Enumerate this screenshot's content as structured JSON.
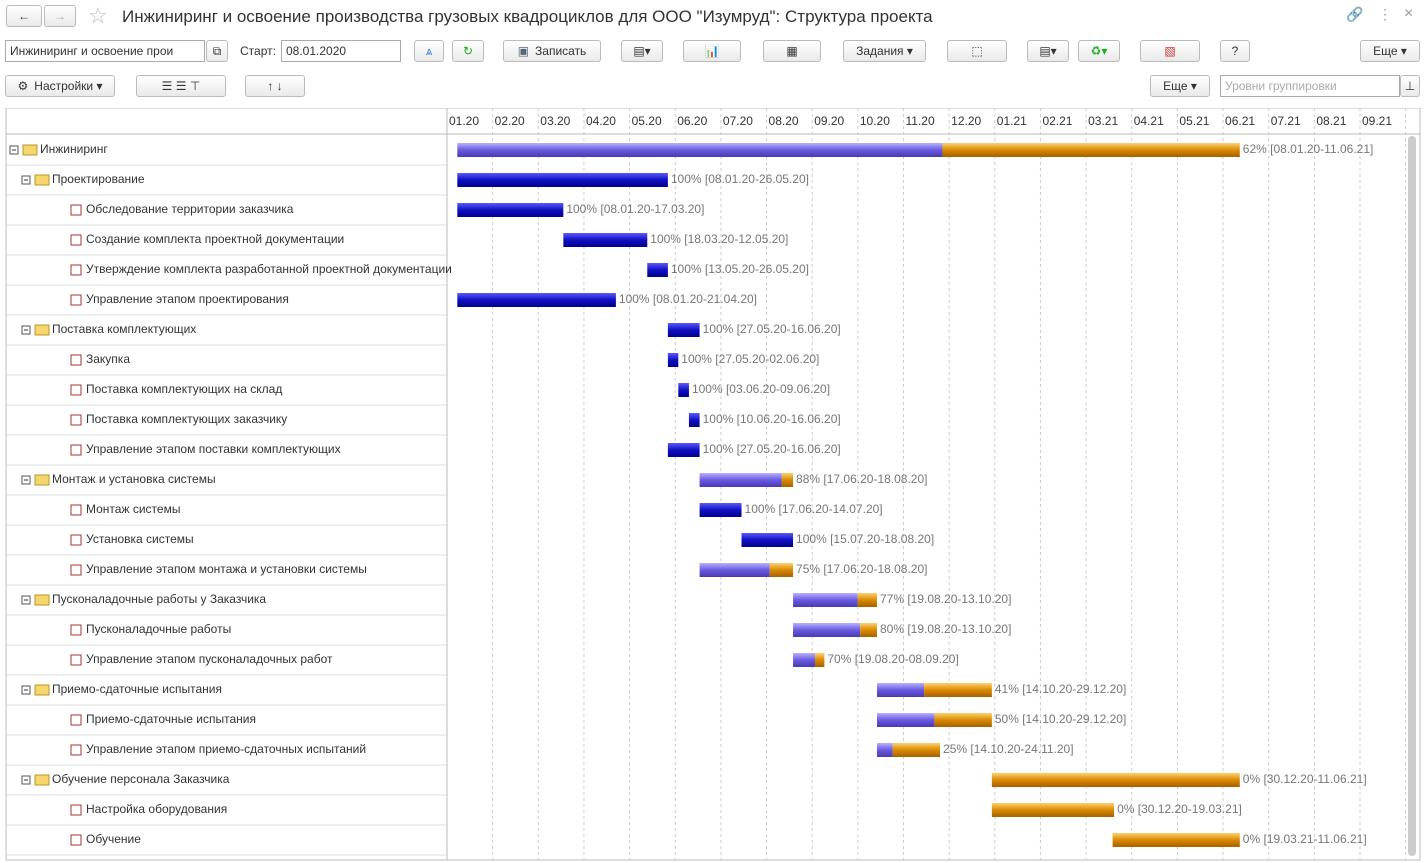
{
  "header": {
    "title": "Инжиниринг и освоение производства грузовых квадроциклов для ООО \"Изумруд\": Структура проекта"
  },
  "toolbar": {
    "project": "Инжиниринг и освоение прои",
    "start_label": "Старт:",
    "start_date": "08.01.2020",
    "save": "Записать",
    "tasks": "Задания",
    "help": "?",
    "more": "Еще"
  },
  "toolbar2": {
    "settings": "Настройки",
    "more": "Еще",
    "grouping_placeholder": "Уровни группировки"
  },
  "timeline": {
    "months": [
      "01.20",
      "02.20",
      "03.20",
      "04.20",
      "05.20",
      "06.20",
      "07.20",
      "08.20",
      "09.20",
      "10.20",
      "11.20",
      "12.20",
      "01.21",
      "02.21",
      "03.21",
      "04.21",
      "05.21",
      "06.21",
      "07.21",
      "08.21",
      "09.21"
    ]
  },
  "rows": [
    {
      "name": "Инжиниринг",
      "level": 0,
      "label": "62% [08.01.20-11.06.21]"
    },
    {
      "name": "Проектирование",
      "level": 1,
      "label": "100% [08.01.20-26.05.20]"
    },
    {
      "name": "Обследование территории заказчика",
      "level": 2,
      "label": "100% [08.01.20-17.03.20]"
    },
    {
      "name": "Создание комплекта проектной документации",
      "level": 2,
      "label": "100% [18.03.20-12.05.20]"
    },
    {
      "name": "Утверждение комплекта разработанной проектной документации",
      "level": 2,
      "label": "100% [13.05.20-26.05.20]"
    },
    {
      "name": "Управление этапом проектирования",
      "level": 2,
      "label": "100% [08.01.20-21.04.20]"
    },
    {
      "name": "Поставка комплектующих",
      "level": 1,
      "label": "100% [27.05.20-16.06.20]"
    },
    {
      "name": "Закупка",
      "level": 2,
      "label": "100% [27.05.20-02.06.20]"
    },
    {
      "name": "Поставка комплектующих на склад",
      "level": 2,
      "label": "100% [03.06.20-09.06.20]"
    },
    {
      "name": "Поставка комплектующих заказчику",
      "level": 2,
      "label": "100% [10.06.20-16.06.20]"
    },
    {
      "name": "Управление этапом поставки комплектующих",
      "level": 2,
      "label": "100% [27.05.20-16.06.20]"
    },
    {
      "name": "Монтаж и установка системы",
      "level": 1,
      "label": "88% [17.06.20-18.08.20]"
    },
    {
      "name": "Монтаж системы",
      "level": 2,
      "label": "100% [17.06.20-14.07.20]"
    },
    {
      "name": "Установка системы",
      "level": 2,
      "label": "100% [15.07.20-18.08.20]"
    },
    {
      "name": "Управление этапом монтажа и установки системы",
      "level": 2,
      "label": "75% [17.06.20-18.08.20]"
    },
    {
      "name": "Пусконаладочные работы у Заказчика",
      "level": 1,
      "label": "77% [19.08.20-13.10.20]"
    },
    {
      "name": "Пусконаладочные работы",
      "level": 2,
      "label": "80% [19.08.20-13.10.20]"
    },
    {
      "name": "Управление этапом пусконаладочных работ",
      "level": 2,
      "label": "70% [19.08.20-08.09.20]"
    },
    {
      "name": "Приемо-сдаточные испытания",
      "level": 1,
      "label": "41% [14.10.20-29.12.20]"
    },
    {
      "name": "Приемо-сдаточные испытания",
      "level": 2,
      "label": "50% [14.10.20-29.12.20]"
    },
    {
      "name": "Управление этапом приемо-сдаточных испытаний",
      "level": 2,
      "label": "25% [14.10.20-24.11.20]"
    },
    {
      "name": "Обучение персонала Заказчика",
      "level": 1,
      "label": "0% [30.12.20-11.06.21]"
    },
    {
      "name": "Настройка оборудования",
      "level": 2,
      "label": "0% [30.12.20-19.03.21]"
    },
    {
      "name": "Обучение",
      "level": 2,
      "label": "0% [19.03.21-11.06.21]"
    }
  ]
}
